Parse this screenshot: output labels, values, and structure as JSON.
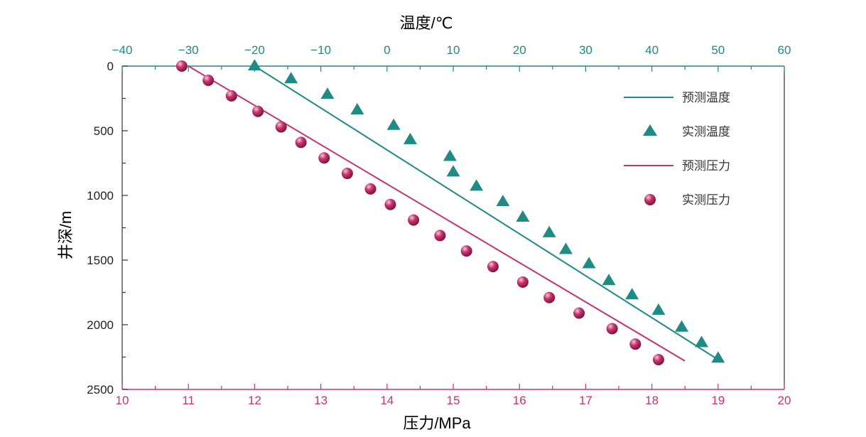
{
  "chart_data": {
    "type": "line",
    "colors": {
      "temperature": "#1f8a86",
      "pressure": "#c8336e",
      "frame": "#333333"
    },
    "axes": {
      "top": {
        "label": "温度/℃",
        "range": [
          -40,
          60
        ],
        "ticks": [
          -40,
          -30,
          -20,
          -10,
          0,
          10,
          20,
          30,
          40,
          50,
          60
        ],
        "tick_labels": [
          "−40",
          "−30",
          "−20",
          "−10",
          "0",
          "10",
          "20",
          "30",
          "40",
          "50",
          "60"
        ]
      },
      "bottom": {
        "label": "压力/MPa",
        "range": [
          10,
          20
        ],
        "ticks": [
          10,
          11,
          12,
          13,
          14,
          15,
          16,
          17,
          18,
          19,
          20
        ],
        "tick_labels": [
          "10",
          "11",
          "12",
          "13",
          "14",
          "15",
          "16",
          "17",
          "18",
          "19",
          "20"
        ]
      },
      "left": {
        "label": "井深/m",
        "range": [
          0,
          2500
        ],
        "inverted": true,
        "ticks": [
          0,
          500,
          1000,
          1500,
          2000,
          2500
        ],
        "tick_labels": [
          "0",
          "500",
          "1000",
          "1500",
          "2000",
          "2500"
        ]
      }
    },
    "legend": {
      "placement": "top-right",
      "items": [
        {
          "label": "预测温度",
          "marker": "line",
          "series": "temperature"
        },
        {
          "label": "实测温度",
          "marker": "triangle",
          "series": "temperature"
        },
        {
          "label": "预测压力",
          "marker": "line",
          "series": "pressure"
        },
        {
          "label": "实测压力",
          "marker": "circle",
          "series": "pressure"
        }
      ]
    },
    "series": [
      {
        "name": "预测温度",
        "kind": "line",
        "axis": "top",
        "points": [
          [
            -20,
            0
          ],
          [
            50,
            2270
          ]
        ]
      },
      {
        "name": "实测温度",
        "kind": "triangle",
        "axis": "top",
        "points": [
          [
            -20,
            0
          ],
          [
            -14.5,
            100
          ],
          [
            -9,
            220
          ],
          [
            -4.5,
            340
          ],
          [
            1,
            460
          ],
          [
            3.5,
            570
          ],
          [
            9.5,
            700
          ],
          [
            10,
            820
          ],
          [
            13.5,
            930
          ],
          [
            17.5,
            1050
          ],
          [
            20.5,
            1170
          ],
          [
            24.5,
            1290
          ],
          [
            27,
            1420
          ],
          [
            30.5,
            1530
          ],
          [
            33.5,
            1660
          ],
          [
            37,
            1770
          ],
          [
            41,
            1890
          ],
          [
            44.5,
            2020
          ],
          [
            47.5,
            2140
          ],
          [
            50,
            2260
          ]
        ]
      },
      {
        "name": "预测压力",
        "kind": "line",
        "axis": "bottom",
        "points": [
          [
            11,
            0
          ],
          [
            18.5,
            2280
          ]
        ]
      },
      {
        "name": "实测压力",
        "kind": "circle",
        "axis": "bottom",
        "points": [
          [
            10.9,
            0
          ],
          [
            11.3,
            110
          ],
          [
            11.65,
            230
          ],
          [
            12.05,
            350
          ],
          [
            12.4,
            470
          ],
          [
            12.7,
            590
          ],
          [
            13.05,
            710
          ],
          [
            13.4,
            830
          ],
          [
            13.75,
            950
          ],
          [
            14.05,
            1070
          ],
          [
            14.4,
            1190
          ],
          [
            14.8,
            1310
          ],
          [
            15.2,
            1430
          ],
          [
            15.6,
            1550
          ],
          [
            16.05,
            1670
          ],
          [
            16.45,
            1790
          ],
          [
            16.9,
            1910
          ],
          [
            17.4,
            2030
          ],
          [
            17.75,
            2150
          ],
          [
            18.1,
            2270
          ]
        ]
      }
    ]
  }
}
